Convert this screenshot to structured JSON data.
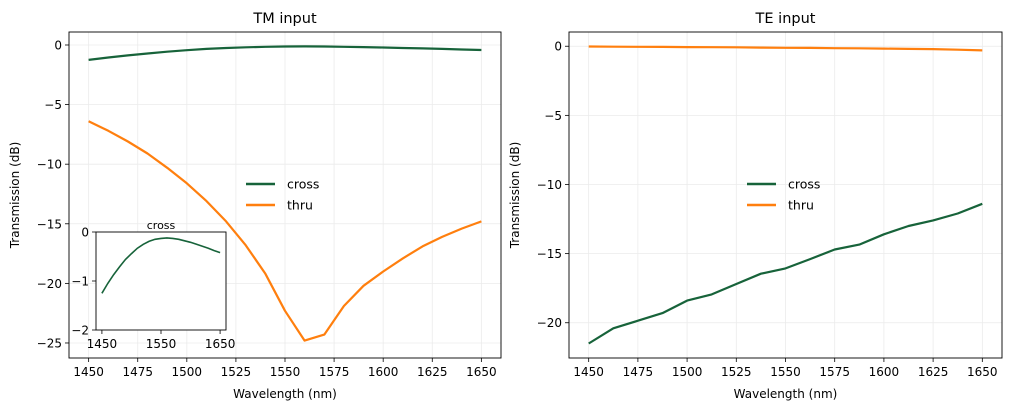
{
  "chart_data": [
    {
      "type": "line",
      "title": "TM input",
      "xlabel": "Wavelength (nm)",
      "ylabel": "Transmission (dB)",
      "xlim": [
        1440,
        1660
      ],
      "ylim": [
        -26.26,
        1.09
      ],
      "xticks": [
        1450,
        1475,
        1500,
        1525,
        1550,
        1575,
        1600,
        1625,
        1650
      ],
      "yticks": [
        0,
        -5,
        -10,
        -15,
        -20,
        -25
      ],
      "ytick_labels": [
        "0",
        "−5",
        "−10",
        "−15",
        "−20",
        "−25"
      ],
      "grid": true,
      "legend_placement": "center",
      "x": [
        1450,
        1460,
        1470,
        1480,
        1490,
        1500,
        1510,
        1520,
        1530,
        1540,
        1550,
        1560,
        1570,
        1580,
        1590,
        1600,
        1610,
        1620,
        1630,
        1640,
        1650
      ],
      "series": [
        {
          "name": "cross",
          "color": "#17633a",
          "values": [
            -1.25,
            -1.05,
            -0.87,
            -0.71,
            -0.56,
            -0.44,
            -0.33,
            -0.25,
            -0.19,
            -0.15,
            -0.13,
            -0.12,
            -0.13,
            -0.15,
            -0.18,
            -0.21,
            -0.25,
            -0.29,
            -0.33,
            -0.38,
            -0.42
          ]
        },
        {
          "name": "thru",
          "color": "#ff7f0e",
          "values": [
            -6.4,
            -7.2,
            -8.1,
            -9.1,
            -10.3,
            -11.6,
            -13.1,
            -14.8,
            -16.8,
            -19.2,
            -22.3,
            -24.8,
            -24.3,
            -21.9,
            -20.2,
            -19.0,
            -17.9,
            -16.9,
            -16.1,
            -15.4,
            -14.8
          ]
        }
      ],
      "inset": {
        "title": "cross",
        "xlim": [
          1440,
          1660
        ],
        "ylim": [
          -2,
          0
        ],
        "xticks": [
          1450,
          1550,
          1650
        ],
        "yticks": [
          0,
          -1,
          -2
        ],
        "ytick_labels": [
          "0",
          "−1",
          "−2"
        ],
        "series": "cross"
      }
    },
    {
      "type": "line",
      "title": "TE input",
      "xlabel": "Wavelength (nm)",
      "ylabel": "Transmission (dB)",
      "xlim": [
        1440,
        1660
      ],
      "ylim": [
        -22.55,
        1.03
      ],
      "xticks": [
        1450,
        1475,
        1500,
        1525,
        1550,
        1575,
        1600,
        1625,
        1650
      ],
      "yticks": [
        0,
        -5,
        -10,
        -15,
        -20
      ],
      "ytick_labels": [
        "0",
        "−5",
        "−10",
        "−15",
        "−20"
      ],
      "grid": true,
      "legend_placement": "center",
      "x": [
        1450,
        1462.5,
        1475,
        1487.5,
        1500,
        1512.5,
        1525,
        1537.5,
        1550,
        1562.5,
        1575,
        1587.5,
        1600,
        1612.5,
        1625,
        1637.5,
        1650
      ],
      "series": [
        {
          "name": "cross",
          "color": "#17633a",
          "values": [
            -21.5,
            -20.4,
            -19.85,
            -19.3,
            -18.4,
            -17.95,
            -17.2,
            -16.45,
            -16.07,
            -15.4,
            -14.7,
            -14.35,
            -13.6,
            -13.0,
            -12.6,
            -12.1,
            -11.4
          ]
        },
        {
          "name": "thru",
          "color": "#ff7f0e",
          "values": [
            -0.02,
            -0.03,
            -0.04,
            -0.05,
            -0.06,
            -0.07,
            -0.08,
            -0.1,
            -0.11,
            -0.12,
            -0.14,
            -0.15,
            -0.17,
            -0.19,
            -0.21,
            -0.25,
            -0.3
          ]
        }
      ]
    }
  ]
}
